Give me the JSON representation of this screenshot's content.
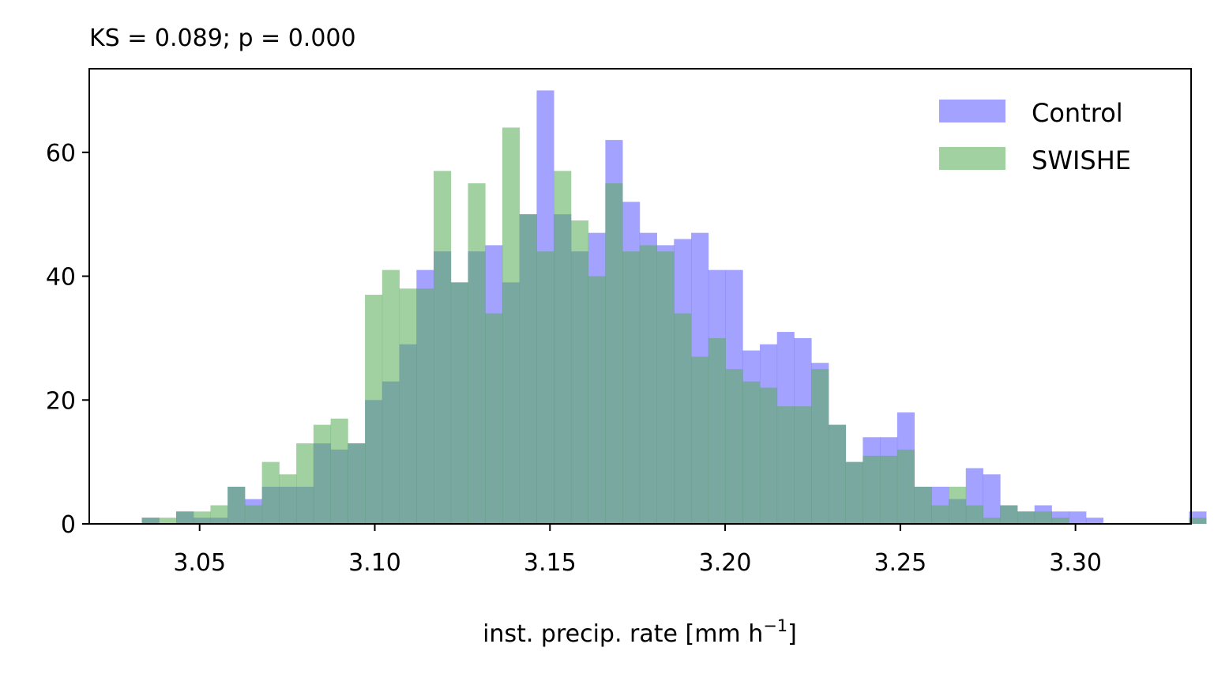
{
  "chart_data": {
    "type": "bar",
    "title": "KS = 0.089; p = 0.000",
    "xlabel": "inst. precip. rate [mm h",
    "xlabel_sup": "−1",
    "xlabel_end": "]",
    "ylabel": "",
    "xlim": [
      3.0185,
      3.333
    ],
    "ylim": [
      0,
      73.5
    ],
    "bin_start": 3.0335,
    "bin_width": 0.0049,
    "x_ticks": [
      3.05,
      3.1,
      3.15,
      3.2,
      3.25,
      3.3
    ],
    "x_tick_labels": [
      "3.05",
      "3.10",
      "3.15",
      "3.20",
      "3.25",
      "3.30"
    ],
    "y_ticks": [
      0,
      20,
      40,
      60
    ],
    "y_tick_labels": [
      "0",
      "20",
      "40",
      "60"
    ],
    "grid": false,
    "legend_position": "top-right",
    "series": [
      {
        "name": "Control",
        "color": "#6666ff",
        "opacity": 0.6,
        "values": [
          1,
          0,
          2,
          1,
          1,
          6,
          4,
          6,
          6,
          6,
          13,
          12,
          13,
          20,
          23,
          29,
          41,
          44,
          39,
          44,
          45,
          39,
          50,
          70,
          50,
          44,
          47,
          62,
          52,
          47,
          45,
          46,
          47,
          41,
          41,
          28,
          29,
          31,
          30,
          26,
          16,
          10,
          14,
          14,
          18,
          6,
          6,
          4,
          9,
          8,
          3,
          2,
          3,
          2,
          2,
          1,
          0,
          0,
          0,
          0,
          0,
          2
        ]
      },
      {
        "name": "SWISHE",
        "color": "#5aad5a",
        "opacity": 0.57,
        "values": [
          1,
          1,
          2,
          2,
          3,
          6,
          3,
          10,
          8,
          13,
          16,
          17,
          13,
          37,
          41,
          38,
          38,
          57,
          39,
          55,
          34,
          64,
          50,
          44,
          57,
          49,
          40,
          55,
          44,
          45,
          44,
          34,
          27,
          30,
          25,
          23,
          22,
          19,
          19,
          25,
          16,
          10,
          11,
          11,
          12,
          6,
          3,
          6,
          3,
          1,
          3,
          2,
          2,
          1,
          0,
          0,
          0,
          0,
          0,
          0,
          0,
          1
        ]
      }
    ]
  }
}
